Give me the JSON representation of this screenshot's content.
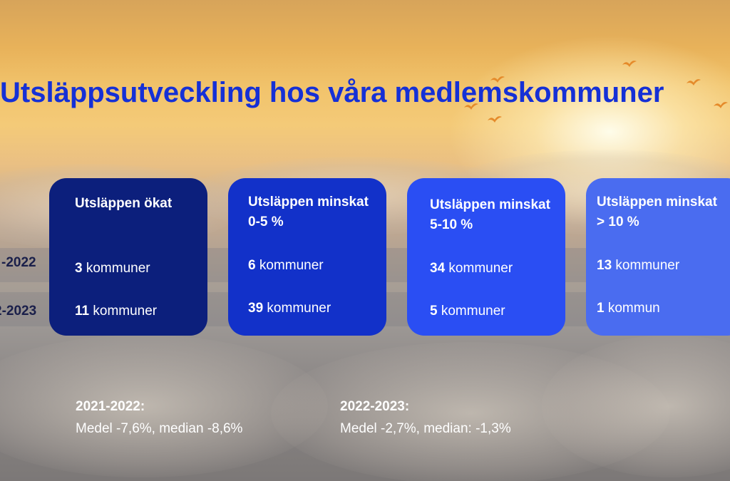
{
  "title": "Utsläppsutveckling hos våra medlemskommuner",
  "row_labels": [
    "-2022",
    "2-2023"
  ],
  "cards": [
    {
      "heading": "Utsläppen ökat",
      "values": [
        {
          "num": "3",
          "unit": "kommuner"
        },
        {
          "num": "11",
          "unit": "kommuner"
        }
      ],
      "color": "#0c1f7c"
    },
    {
      "heading": "Utsläppen minskat 0-5 %",
      "values": [
        {
          "num": "6",
          "unit": "kommuner"
        },
        {
          "num": "39",
          "unit": "kommuner"
        }
      ],
      "color": "#1231c9"
    },
    {
      "heading": "Utsläppen minskat 5-10 %",
      "values": [
        {
          "num": "34",
          "unit": "kommuner"
        },
        {
          "num": "5",
          "unit": "kommuner"
        }
      ],
      "color": "#2a4ef3"
    },
    {
      "heading": "Utsläppen minskat > 10 %",
      "values": [
        {
          "num": "13",
          "unit": "kommuner"
        },
        {
          "num": "1",
          "unit": "kommun"
        }
      ],
      "color": "#4a6cf0"
    }
  ],
  "stats": [
    {
      "period": "2021-2022:",
      "text": "Medel -7,6%, median -8,6%"
    },
    {
      "period": "2022-2023:",
      "text": "Medel -2,7%, median: -1,3%"
    }
  ],
  "colors": {
    "title": "#1530d6",
    "text": "#ffffff"
  },
  "icons": [
    "bird-icon"
  ]
}
